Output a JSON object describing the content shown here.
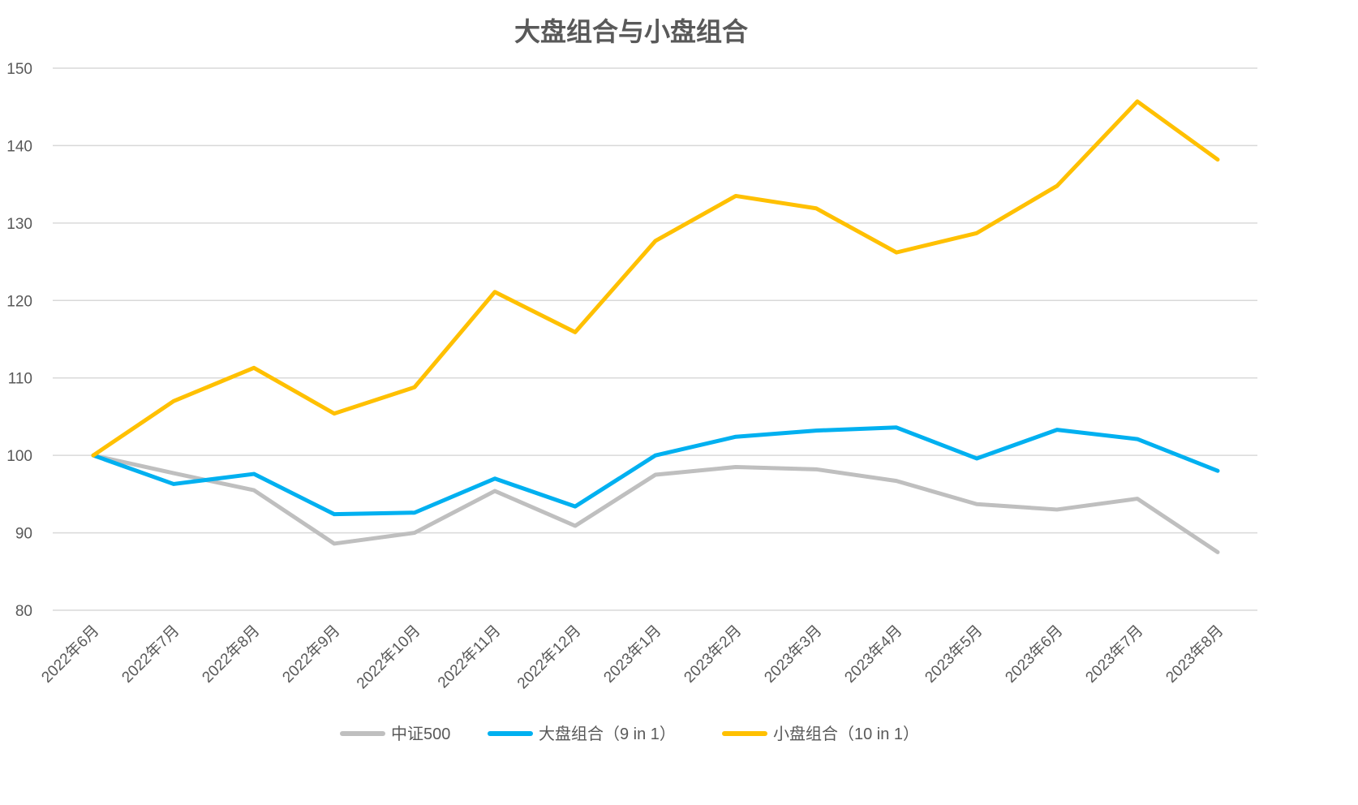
{
  "chart_data": {
    "type": "line",
    "title": "大盘组合与小盘组合",
    "xlabel": "",
    "ylabel": "",
    "ylim": [
      80,
      150
    ],
    "yticks": [
      80,
      90,
      100,
      110,
      120,
      130,
      140,
      150
    ],
    "grid": true,
    "legend_position": "bottom",
    "categories": [
      "2022年6月",
      "2022年7月",
      "2022年8月",
      "2022年9月",
      "2022年10月",
      "2022年11月",
      "2022年12月",
      "2023年1月",
      "2023年2月",
      "2023年3月",
      "2023年4月",
      "2023年5月",
      "2023年6月",
      "2023年7月",
      "2023年8月"
    ],
    "series": [
      {
        "name": "中证500",
        "color": "#BFBFBF",
        "values": [
          100,
          97.7,
          95.5,
          88.6,
          90.0,
          95.4,
          90.9,
          97.5,
          98.5,
          98.2,
          96.7,
          93.7,
          93.0,
          94.4,
          87.5
        ]
      },
      {
        "name": "大盘组合（9 in 1）",
        "color": "#00B0F0",
        "values": [
          100,
          96.3,
          97.6,
          92.4,
          92.6,
          97.0,
          93.4,
          100.0,
          102.4,
          103.2,
          103.6,
          99.6,
          103.3,
          102.1,
          98.0
        ]
      },
      {
        "name": "小盘组合（10 in 1）",
        "color": "#FFC000",
        "values": [
          100,
          107.0,
          111.3,
          105.4,
          108.8,
          121.1,
          115.9,
          127.7,
          133.5,
          131.9,
          126.2,
          128.7,
          134.8,
          145.7,
          138.2
        ]
      }
    ]
  }
}
